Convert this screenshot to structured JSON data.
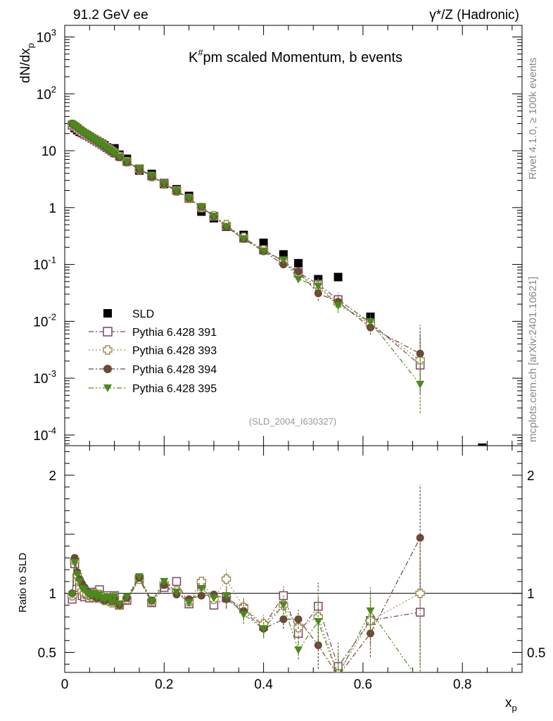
{
  "header": {
    "left": "91.2 GeV ee",
    "right": "γ*/Z (Hadronic)"
  },
  "side_labels": {
    "rivet": "Rivet 4.1.0, ≥ 100k events",
    "mcplots": "mcplots.cern.ch [arXiv:2401.10621]"
  },
  "colors": {
    "SLD": "#000000",
    "P391": "#7a4466",
    "P393": "#9c8a50",
    "P394": "#6b4a36",
    "P395": "#4a8a1c",
    "watermark": "#999999",
    "side_text": "#888888"
  },
  "chart_data": [
    {
      "type": "scatter",
      "scale": "log",
      "title": "K^{#}pm scaled Momentum, b events",
      "title_main": "K",
      "title_sup": "#",
      "title_rest": "pm scaled Momentum, b events",
      "ylabel": "dN/dx_p",
      "ylabel_main": "dN/dx",
      "ylabel_sub": "p",
      "xlim": [
        0,
        0.92
      ],
      "ylim": [
        6.5e-05,
        1600
      ],
      "ytick_labels": [
        "10^{-4}",
        "10^{-3}",
        "10^{-2}",
        "10^{-1}",
        "1",
        "10",
        "10^{2}",
        "10^{3}"
      ],
      "watermark": "(SLD_2004_I630327)",
      "legend": [
        {
          "name": "SLD",
          "marker": "square-filled"
        },
        {
          "name": "Pythia 6.428 391",
          "marker": "square-open"
        },
        {
          "name": "Pythia 6.428 393",
          "marker": "cross-open"
        },
        {
          "name": "Pythia 6.428 394",
          "marker": "circle-filled"
        },
        {
          "name": "Pythia 6.428 395",
          "marker": "triangle-down-filled"
        }
      ],
      "series": [
        {
          "name": "SLD",
          "x": [
            0.015,
            0.02,
            0.025,
            0.03,
            0.035,
            0.04,
            0.045,
            0.05,
            0.055,
            0.06,
            0.065,
            0.07,
            0.075,
            0.08,
            0.085,
            0.09,
            0.095,
            0.1,
            0.11,
            0.125,
            0.15,
            0.175,
            0.2,
            0.225,
            0.25,
            0.275,
            0.3,
            0.325,
            0.36,
            0.4,
            0.44,
            0.47,
            0.51,
            0.55,
            0.615,
            0.84
          ],
          "y": [
            28,
            25,
            23,
            21.5,
            20.5,
            19.5,
            18.5,
            17.5,
            16.5,
            15.5,
            14.8,
            14,
            13.2,
            12.5,
            11.5,
            10.8,
            10.2,
            11,
            8.5,
            7.2,
            4.5,
            3.9,
            2.6,
            2.1,
            1.6,
            0.85,
            0.65,
            0.46,
            0.33,
            0.24,
            0.15,
            0.105,
            0.055,
            0.06,
            0.012,
            6e-05
          ]
        },
        {
          "name": "Pythia 6.428 391",
          "x": [
            0.015,
            0.02,
            0.025,
            0.03,
            0.035,
            0.04,
            0.045,
            0.05,
            0.055,
            0.06,
            0.065,
            0.07,
            0.075,
            0.08,
            0.085,
            0.09,
            0.095,
            0.1,
            0.11,
            0.125,
            0.15,
            0.175,
            0.2,
            0.225,
            0.25,
            0.275,
            0.3,
            0.325,
            0.36,
            0.4,
            0.44,
            0.47,
            0.51,
            0.55,
            0.615,
            0.715
          ],
          "y": [
            28,
            26.5,
            24.5,
            22.5,
            21,
            19.8,
            18.7,
            17.6,
            16.5,
            15.6,
            14.6,
            13.8,
            12.9,
            12.1,
            11.3,
            10.6,
            9.9,
            9.2,
            8.0,
            6.5,
            4.8,
            3.6,
            2.7,
            2.0,
            1.45,
            1.0,
            0.7,
            0.47,
            0.29,
            0.18,
            0.115,
            0.072,
            0.045,
            0.024,
            0.0095,
            0.0017
          ]
        },
        {
          "name": "Pythia 6.428 393",
          "x": [
            0.015,
            0.02,
            0.025,
            0.03,
            0.035,
            0.04,
            0.045,
            0.05,
            0.055,
            0.06,
            0.065,
            0.07,
            0.075,
            0.08,
            0.085,
            0.09,
            0.095,
            0.1,
            0.11,
            0.125,
            0.15,
            0.175,
            0.2,
            0.225,
            0.25,
            0.275,
            0.3,
            0.325,
            0.36,
            0.4,
            0.44,
            0.47,
            0.51,
            0.55,
            0.615,
            0.715
          ],
          "y": [
            29,
            27.5,
            25.5,
            23.5,
            21.8,
            20.3,
            19,
            17.8,
            16.7,
            15.7,
            14.7,
            13.8,
            12.9,
            12.1,
            11.3,
            10.5,
            9.8,
            9.1,
            7.9,
            6.4,
            4.7,
            3.5,
            2.6,
            1.95,
            1.45,
            1.0,
            0.72,
            0.5,
            0.3,
            0.18,
            0.11,
            0.065,
            0.042,
            0.021,
            0.0088,
            0.0021
          ]
        },
        {
          "name": "Pythia 6.428 394",
          "x": [
            0.015,
            0.02,
            0.025,
            0.03,
            0.035,
            0.04,
            0.045,
            0.05,
            0.055,
            0.06,
            0.065,
            0.07,
            0.075,
            0.08,
            0.085,
            0.09,
            0.095,
            0.1,
            0.11,
            0.125,
            0.15,
            0.175,
            0.2,
            0.225,
            0.25,
            0.275,
            0.3,
            0.325,
            0.36,
            0.4,
            0.44,
            0.47,
            0.51,
            0.55,
            0.615,
            0.715
          ],
          "y": [
            30,
            28,
            26,
            24,
            22.3,
            20.8,
            19.4,
            18.1,
            16.9,
            15.8,
            14.8,
            13.8,
            12.9,
            12.0,
            11.2,
            10.4,
            9.7,
            9.0,
            7.7,
            6.3,
            4.7,
            3.5,
            2.6,
            1.95,
            1.45,
            1.02,
            0.7,
            0.46,
            0.28,
            0.17,
            0.1,
            0.075,
            0.031,
            0.022,
            0.0078,
            0.0027
          ]
        },
        {
          "name": "Pythia 6.428 395",
          "x": [
            0.015,
            0.02,
            0.025,
            0.03,
            0.035,
            0.04,
            0.045,
            0.05,
            0.055,
            0.06,
            0.065,
            0.07,
            0.075,
            0.08,
            0.085,
            0.09,
            0.095,
            0.1,
            0.11,
            0.125,
            0.15,
            0.175,
            0.2,
            0.225,
            0.25,
            0.275,
            0.3,
            0.325,
            0.36,
            0.4,
            0.44,
            0.47,
            0.51,
            0.55,
            0.615,
            0.715
          ],
          "y": [
            29.5,
            27.5,
            25.5,
            23.5,
            21.8,
            20.3,
            19,
            17.8,
            16.7,
            15.6,
            14.6,
            13.7,
            12.8,
            12.0,
            11.1,
            10.4,
            9.7,
            9.0,
            7.8,
            6.4,
            4.8,
            3.6,
            2.65,
            1.95,
            1.45,
            1.02,
            0.7,
            0.46,
            0.28,
            0.17,
            0.12,
            0.055,
            0.041,
            0.019,
            0.0098,
            0.00078
          ]
        }
      ]
    },
    {
      "type": "scatter",
      "title": "",
      "xlabel": "x_p",
      "xlabel_main": "x",
      "xlabel_sub": "p",
      "ylabel": "Ratio to SLD",
      "xlim": [
        0,
        0.92
      ],
      "ylim": [
        0.33,
        2.25
      ],
      "ytick_labels": [
        "0.5",
        "1",
        "2"
      ],
      "xtick_labels": [
        "0",
        "0.2",
        "0.4",
        "0.6",
        "0.8"
      ],
      "reference_line": 1,
      "series": [
        {
          "name": "Pythia 6.428 391",
          "x": [
            0.015,
            0.02,
            0.025,
            0.03,
            0.035,
            0.04,
            0.045,
            0.05,
            0.055,
            0.06,
            0.065,
            0.07,
            0.075,
            0.08,
            0.085,
            0.09,
            0.095,
            0.1,
            0.11,
            0.125,
            0.15,
            0.175,
            0.2,
            0.225,
            0.25,
            0.275,
            0.3,
            0.325,
            0.36,
            0.4,
            0.44,
            0.47,
            0.51,
            0.55,
            0.615,
            0.715
          ],
          "y": [
            0.95,
            1.25,
            1.1,
            1.05,
            0.98,
            0.97,
            0.99,
            0.96,
            1.0,
            1.01,
            0.97,
            1.03,
            0.97,
            0.95,
            0.98,
            0.96,
            0.93,
            0.98,
            0.9,
            0.94,
            1.12,
            0.92,
            1.05,
            1.1,
            0.91,
            1.08,
            0.9,
            0.96,
            0.87,
            0.72,
            0.98,
            0.66,
            0.89,
            0.38,
            0.77,
            0.84
          ]
        },
        {
          "name": "Pythia 6.428 393",
          "x": [
            0.015,
            0.02,
            0.025,
            0.03,
            0.035,
            0.04,
            0.045,
            0.05,
            0.055,
            0.06,
            0.065,
            0.07,
            0.075,
            0.08,
            0.085,
            0.09,
            0.095,
            0.1,
            0.11,
            0.125,
            0.15,
            0.175,
            0.2,
            0.225,
            0.25,
            0.275,
            0.3,
            0.325,
            0.36,
            0.4,
            0.44,
            0.47,
            0.51,
            0.55,
            0.615,
            0.715
          ],
          "y": [
            0.98,
            1.28,
            1.15,
            1.1,
            1.02,
            1.0,
            0.99,
            0.98,
            0.97,
            1.0,
            0.96,
            0.99,
            0.97,
            0.94,
            0.96,
            0.95,
            0.92,
            0.97,
            0.9,
            0.95,
            1.12,
            0.93,
            1.08,
            1.02,
            0.93,
            1.1,
            0.95,
            1.12,
            0.88,
            0.74,
            0.9,
            0.71,
            0.8,
            0.32,
            0.77,
            1.0
          ]
        },
        {
          "name": "Pythia 6.428 394",
          "x": [
            0.015,
            0.02,
            0.025,
            0.03,
            0.035,
            0.04,
            0.045,
            0.05,
            0.055,
            0.06,
            0.065,
            0.07,
            0.075,
            0.08,
            0.085,
            0.09,
            0.095,
            0.1,
            0.11,
            0.125,
            0.15,
            0.175,
            0.2,
            0.225,
            0.25,
            0.275,
            0.3,
            0.325,
            0.36,
            0.4,
            0.44,
            0.47,
            0.51,
            0.55,
            0.615,
            0.715
          ],
          "y": [
            1.0,
            1.3,
            1.18,
            1.12,
            1.08,
            1.05,
            1.02,
            1.0,
            0.98,
            0.99,
            0.96,
            0.97,
            0.96,
            0.94,
            0.97,
            0.95,
            0.93,
            0.96,
            0.9,
            0.96,
            1.13,
            0.94,
            1.07,
            0.99,
            0.95,
            0.98,
            0.99,
            0.95,
            0.85,
            0.7,
            0.78,
            0.78,
            0.56,
            0.3,
            0.66,
            1.47
          ]
        },
        {
          "name": "Pythia 6.428 395",
          "x": [
            0.015,
            0.02,
            0.025,
            0.03,
            0.035,
            0.04,
            0.045,
            0.05,
            0.055,
            0.06,
            0.065,
            0.07,
            0.075,
            0.08,
            0.085,
            0.09,
            0.095,
            0.1,
            0.11,
            0.125,
            0.15,
            0.175,
            0.2,
            0.225,
            0.25,
            0.275,
            0.3,
            0.325,
            0.36,
            0.4,
            0.44,
            0.47,
            0.51,
            0.55,
            0.615,
            0.715
          ],
          "y": [
            0.99,
            1.26,
            1.16,
            1.1,
            1.04,
            1.03,
            1.0,
            0.99,
            0.98,
            1.0,
            0.97,
            0.99,
            0.96,
            0.95,
            0.97,
            0.96,
            0.92,
            0.97,
            0.91,
            0.97,
            1.14,
            0.93,
            1.1,
            1.01,
            0.92,
            1.04,
            0.96,
            0.98,
            0.82,
            0.7,
            0.9,
            0.52,
            0.76,
            0.3,
            0.85,
            0.25
          ]
        }
      ]
    }
  ]
}
